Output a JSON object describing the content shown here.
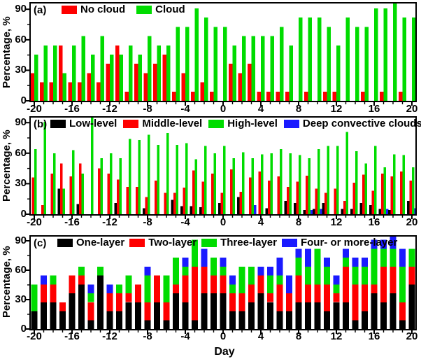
{
  "figure": {
    "xlabel": "Day",
    "ylabel": "Percentage, %",
    "y_ticks": [
      0,
      30,
      60,
      90
    ],
    "y_minor_ticks": [
      15,
      45,
      75
    ],
    "x_tick_labels": [
      -20,
      -16,
      -12,
      -8,
      -4,
      0,
      4,
      8,
      12,
      16,
      20
    ],
    "x_range": [
      -20,
      20
    ],
    "background": "#ffffff"
  },
  "colors": {
    "black": "#000000",
    "red": "#fe0000",
    "green": "#00dc00",
    "blue": "#1a1aff"
  },
  "chart_data": [
    {
      "type": "bar",
      "grouping": "grouped",
      "panel_label": "(a)",
      "ylabel": "Percentage, %",
      "ylim": [
        0,
        96
      ],
      "x_days": [
        -20,
        -19,
        -18,
        -17,
        -16,
        -15,
        -14,
        -13,
        -12,
        -11,
        -10,
        -9,
        -8,
        -7,
        -6,
        -5,
        -4,
        -3,
        -2,
        -1,
        0,
        1,
        2,
        3,
        4,
        5,
        6,
        7,
        8,
        9,
        10,
        11,
        12,
        13,
        14,
        15,
        16,
        17,
        18,
        19,
        20
      ],
      "series": [
        {
          "name": "No cloud",
          "color": "#fe0000",
          "values": [
            27.3,
            18.2,
            18.2,
            54.5,
            18.2,
            18.2,
            27.3,
            18.2,
            36.4,
            54.5,
            9.1,
            36.4,
            27.3,
            36.4,
            45.5,
            9.1,
            27.3,
            9.1,
            18.2,
            9.1,
            0,
            36.4,
            27.3,
            36.4,
            9.1,
            9.1,
            9.1,
            9.1,
            0,
            9.1,
            0,
            9.1,
            9.1,
            0,
            0,
            9.1,
            0,
            9.1,
            0,
            9.1,
            0
          ]
        },
        {
          "name": "Cloud",
          "color": "#00dc00",
          "values": [
            45.5,
            54.5,
            54.5,
            27.3,
            54.5,
            63.6,
            45.5,
            63.6,
            45.5,
            45.5,
            54.5,
            45.5,
            63.6,
            54.5,
            54.5,
            72.7,
            72.7,
            90.9,
            81.8,
            72.7,
            72.7,
            54.5,
            63.6,
            63.6,
            63.6,
            63.6,
            72.7,
            54.5,
            81.8,
            81.8,
            81.8,
            72.7,
            54.5,
            81.8,
            72.7,
            72.7,
            90.9,
            90.9,
            100,
            81.8,
            81.8
          ]
        }
      ]
    },
    {
      "type": "bar",
      "grouping": "grouped",
      "panel_label": "(b)",
      "ylabel": "Percentage, %",
      "ylim": [
        0,
        96
      ],
      "x_days": [
        -20,
        -19,
        -18,
        -17,
        -16,
        -15,
        -14,
        -13,
        -12,
        -11,
        -10,
        -9,
        -8,
        -7,
        -6,
        -5,
        -4,
        -3,
        -2,
        -1,
        0,
        1,
        2,
        3,
        4,
        5,
        6,
        7,
        8,
        9,
        10,
        11,
        12,
        13,
        14,
        15,
        16,
        17,
        18,
        19,
        20
      ],
      "series": [
        {
          "name": "Low-level",
          "color": "#000000",
          "values": [
            0,
            0,
            0,
            25,
            0,
            10,
            0,
            0,
            0,
            11,
            0,
            0,
            6,
            0,
            0,
            14,
            8,
            8,
            7,
            0,
            11,
            0,
            17,
            0,
            0,
            6,
            0,
            13,
            11,
            4,
            5,
            11,
            0,
            5,
            5,
            11,
            9,
            5,
            4,
            0,
            13
          ]
        },
        {
          "name": "Middle-level",
          "color": "#fe0000",
          "values": [
            36,
            9,
            40,
            50,
            37,
            50,
            0,
            45,
            40,
            34,
            27,
            27,
            17,
            33,
            21,
            21,
            26,
            43,
            32,
            40,
            21,
            44,
            22,
            36,
            42,
            33,
            37,
            27,
            32,
            38,
            25,
            21,
            25,
            13,
            31,
            39,
            23,
            40,
            37,
            42,
            33
          ]
        },
        {
          "name": "High-level",
          "color": "#00dc00",
          "values": [
            64,
            91,
            60,
            25,
            63,
            40,
            100,
            55,
            60,
            55,
            74,
            73,
            78,
            68,
            80,
            68,
            70,
            54,
            67,
            60,
            67,
            55,
            61,
            55,
            59,
            60,
            64,
            60,
            58,
            55,
            64,
            67,
            67,
            81,
            62,
            50,
            67,
            46,
            59,
            58,
            46
          ]
        },
        {
          "name": "Deep convective clouds",
          "color": "#1a1aff",
          "values": [
            0,
            0,
            0,
            0,
            0,
            0,
            0,
            0,
            0,
            0,
            0,
            0,
            0,
            0,
            0,
            0,
            0,
            0,
            0,
            0,
            0,
            0,
            0,
            9,
            0,
            0,
            0,
            0,
            0,
            4,
            5,
            0,
            0,
            0,
            0,
            0,
            0,
            5,
            0,
            0,
            6
          ]
        }
      ]
    },
    {
      "type": "bar",
      "grouping": "stacked",
      "panel_label": "(c)",
      "ylabel": "Percentage, %",
      "ylim": [
        0,
        97
      ],
      "x_days": [
        -20,
        -19,
        -18,
        -17,
        -16,
        -15,
        -14,
        -13,
        -12,
        -11,
        -10,
        -9,
        -8,
        -7,
        -6,
        -5,
        -4,
        -3,
        -2,
        -1,
        0,
        1,
        2,
        3,
        4,
        5,
        6,
        7,
        8,
        9,
        10,
        11,
        12,
        13,
        14,
        15,
        16,
        17,
        18,
        19,
        20
      ],
      "series": [
        {
          "name": "One-layer",
          "color": "#000000",
          "values": [
            18.2,
            27.3,
            27.3,
            18.2,
            36.4,
            45.5,
            9.1,
            54.5,
            18.2,
            18.2,
            27.3,
            27.3,
            9.1,
            27.3,
            9.1,
            36.4,
            27.3,
            9.1,
            36.4,
            36.4,
            36.4,
            18.2,
            18.2,
            27.3,
            36.4,
            27.3,
            18.2,
            18.2,
            27.3,
            27.3,
            27.3,
            18.2,
            27.3,
            27.3,
            9.1,
            18.2,
            36.4,
            27.3,
            36.4,
            9.1,
            45.5
          ]
        },
        {
          "name": "Two-layer",
          "color": "#fe0000",
          "values": [
            0,
            18.2,
            18.2,
            9.1,
            18.2,
            9.1,
            18.2,
            0,
            18.2,
            18.2,
            9.1,
            18.2,
            18.2,
            27.3,
            18.2,
            9.1,
            27.3,
            54.5,
            27.3,
            18.2,
            18.2,
            18.2,
            18.2,
            18.2,
            18.2,
            9.1,
            27.3,
            18.2,
            27.3,
            18.2,
            18.2,
            27.3,
            9.1,
            36.4,
            36.4,
            27.3,
            9.1,
            36.4,
            27.3,
            18.2,
            18.2
          ]
        },
        {
          "name": "Three-layer",
          "color": "#00dc00",
          "values": [
            27.3,
            0,
            9.1,
            0,
            0,
            9.1,
            9.1,
            9.1,
            0,
            9.1,
            18.2,
            0,
            27.3,
            0,
            27.3,
            27.3,
            9.1,
            27.3,
            0,
            18.2,
            9.1,
            9.1,
            27.3,
            18.2,
            0,
            18.2,
            9.1,
            0,
            18.2,
            18.2,
            36.4,
            18.2,
            9.1,
            9.1,
            18.2,
            18.2,
            36.4,
            18.2,
            18.2,
            36.4,
            18.2
          ]
        },
        {
          "name": "Four- or more-layer",
          "color": "#1a1aff",
          "values": [
            0,
            9.1,
            0,
            0,
            0,
            0,
            9.1,
            0,
            9.1,
            0,
            0,
            0,
            9.1,
            0,
            0,
            0,
            9.1,
            0,
            18.2,
            0,
            9.1,
            9.1,
            0,
            0,
            9.1,
            9.1,
            18.2,
            18.2,
            9.1,
            18.2,
            0,
            9.1,
            9.1,
            9.1,
            9.1,
            9.1,
            9.1,
            9.1,
            18.2,
            18.2,
            0
          ]
        }
      ]
    }
  ]
}
